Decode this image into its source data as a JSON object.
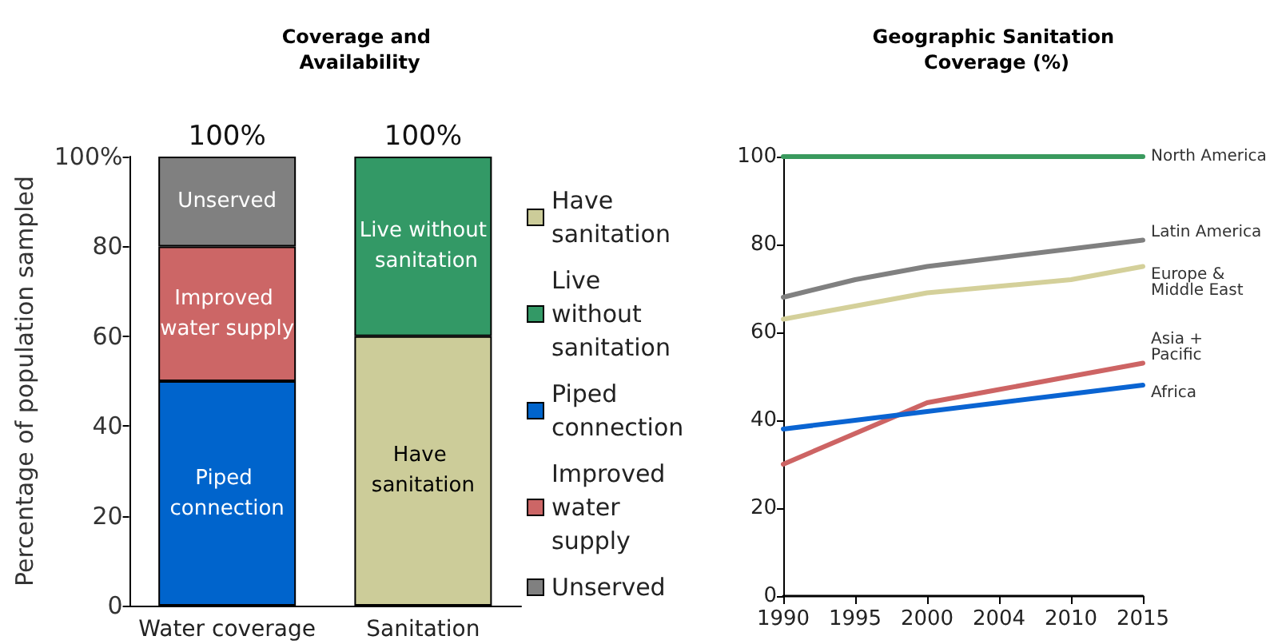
{
  "chart_data": [
    {
      "type": "bar",
      "title": "Coverage and Availability",
      "ylabel": "Percentage of population sampled",
      "stacked": true,
      "categories": [
        "Water coverage",
        "Sanitation"
      ],
      "series": [
        {
          "name": "Have sanitation",
          "color": "#cccc99",
          "values": [
            null,
            60
          ]
        },
        {
          "name": "Live without sanitation",
          "color": "#339966",
          "values": [
            null,
            40
          ]
        },
        {
          "name": "Piped connection",
          "color": "#0064cc",
          "values": [
            50,
            null
          ]
        },
        {
          "name": "Improved water supply",
          "color": "#cc6666",
          "values": [
            30,
            null
          ]
        },
        {
          "name": "Unserved",
          "color": "#808080",
          "values": [
            20,
            null
          ]
        }
      ],
      "ylim": [
        0,
        100
      ],
      "yticks": [
        0,
        20,
        40,
        60,
        80,
        {
          "value": 100,
          "label": "100%"
        }
      ],
      "totals": [
        "100%",
        "100%"
      ],
      "legend": "right",
      "grid": false
    },
    {
      "type": "line",
      "title": "Geographic Sanitation Coverage (%)",
      "categories": [
        "1990",
        "1995",
        "2000",
        "2004",
        "2010",
        "2015"
      ],
      "series": [
        {
          "name": "North America",
          "color": "#3a9a5e",
          "values": [
            100,
            100,
            100,
            100,
            100,
            100
          ]
        },
        {
          "name": "Latin America",
          "color": "#808080",
          "values": [
            68,
            72,
            75,
            77,
            79,
            81
          ]
        },
        {
          "name": "Europe & Middle East",
          "color": "#d4d09a",
          "values": [
            63,
            66,
            69,
            70.5,
            72,
            75
          ]
        },
        {
          "name": "Asia + Pacific",
          "color": "#cd6464",
          "values": [
            30,
            37,
            44,
            47,
            50,
            53
          ]
        },
        {
          "name": "Africa",
          "color": "#0a64d2",
          "values": [
            38,
            40,
            42,
            44,
            46,
            48
          ]
        }
      ],
      "ylim": [
        0,
        100
      ],
      "yticks": [
        0,
        20,
        40,
        60,
        80,
        100
      ],
      "legend": false,
      "grid": false,
      "marker": "none",
      "line_style": "solid"
    }
  ]
}
